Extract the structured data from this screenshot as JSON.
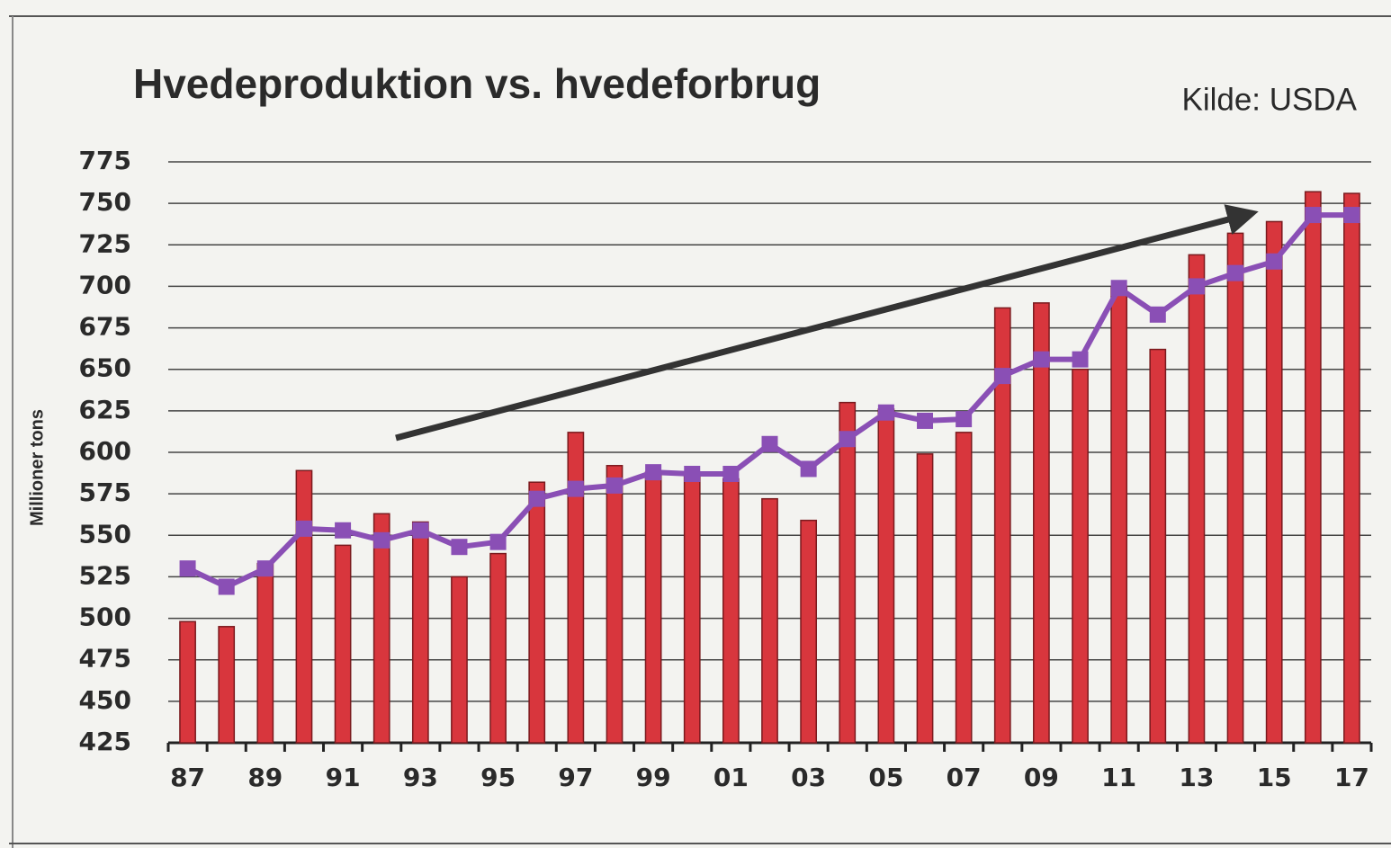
{
  "chart_data": {
    "type": "bar",
    "title": "Hvedeproduktion vs. hvedeforbrug",
    "source": "Kilde: USDA",
    "y_axis_label": "Millioner tons",
    "categories": [
      "87",
      null,
      "89",
      null,
      "91",
      null,
      "93",
      null,
      "95",
      null,
      "97",
      null,
      "99",
      null,
      "01",
      null,
      "03",
      null,
      "05",
      null,
      "07",
      null,
      "09",
      null,
      "11",
      null,
      "13",
      null,
      "15",
      null,
      "17"
    ],
    "series": [
      {
        "type": "bar",
        "color": "#d8363d",
        "values": [
          498,
          495,
          533,
          589,
          544,
          563,
          558,
          525,
          539,
          582,
          612,
          592,
          588,
          586,
          584,
          572,
          559,
          630,
          626,
          599,
          612,
          687,
          690,
          650,
          700,
          662,
          719,
          732,
          739,
          757,
          756
        ]
      },
      {
        "type": "line",
        "color": "#8a4fb5",
        "values": [
          530,
          519,
          530,
          554,
          553,
          547,
          553,
          543,
          546,
          572,
          578,
          580,
          588,
          587,
          587,
          605,
          590,
          608,
          624,
          619,
          620,
          646,
          656,
          656,
          699,
          683,
          700,
          708,
          715,
          743,
          743
        ]
      }
    ],
    "ylim": [
      425,
      775
    ],
    "yticks": [
      425,
      450,
      475,
      500,
      525,
      550,
      575,
      600,
      625,
      650,
      675,
      700,
      725,
      750,
      775
    ],
    "grid": true
  }
}
